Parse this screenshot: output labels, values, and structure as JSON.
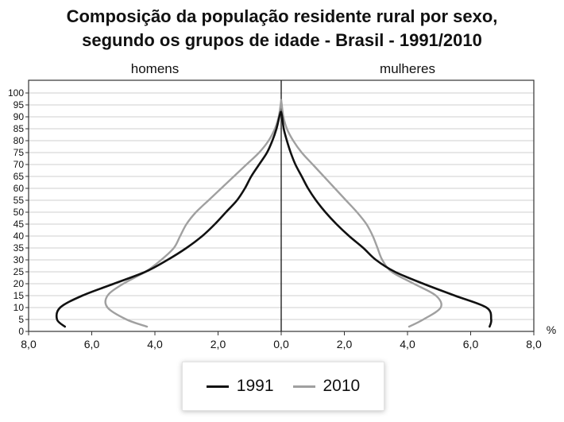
{
  "chart_data": {
    "type": "line",
    "title_lines": [
      "Composição da população residente rural por sexo,",
      "segundo os grupos de idade - Brasil - 1991/2010"
    ],
    "left_label": "homens",
    "right_label": "mulheres",
    "unit_label": "%",
    "x_ticks": [
      "8,0",
      "6,0",
      "4,0",
      "2,0",
      "0,0",
      "2,0",
      "4,0",
      "6,0",
      "8,0"
    ],
    "y_ticks": [
      "0",
      "5",
      "10",
      "15",
      "20",
      "25",
      "30",
      "35",
      "40",
      "45",
      "50",
      "55",
      "60",
      "65",
      "70",
      "75",
      "80",
      "85",
      "90",
      "95",
      "100"
    ],
    "xlim": [
      -8,
      8
    ],
    "ylim": [
      0,
      101
    ],
    "grid": true,
    "legend": "bottom-center",
    "series": [
      {
        "name": "1991",
        "color": "#111111",
        "men": [
          [
            6.85,
            2
          ],
          [
            7.1,
            5
          ],
          [
            7.0,
            10
          ],
          [
            6.3,
            15
          ],
          [
            5.3,
            20
          ],
          [
            4.3,
            25
          ],
          [
            3.6,
            30
          ],
          [
            3.0,
            35
          ],
          [
            2.5,
            40
          ],
          [
            2.1,
            45
          ],
          [
            1.75,
            50
          ],
          [
            1.4,
            55
          ],
          [
            1.15,
            60
          ],
          [
            0.95,
            65
          ],
          [
            0.7,
            70
          ],
          [
            0.45,
            75
          ],
          [
            0.28,
            80
          ],
          [
            0.15,
            85
          ],
          [
            0.06,
            90
          ],
          [
            0.02,
            92
          ]
        ],
        "women": [
          [
            6.6,
            2
          ],
          [
            6.65,
            5
          ],
          [
            6.5,
            10
          ],
          [
            5.5,
            15
          ],
          [
            4.5,
            20
          ],
          [
            3.6,
            25
          ],
          [
            3.0,
            30
          ],
          [
            2.6,
            35
          ],
          [
            2.15,
            40
          ],
          [
            1.75,
            45
          ],
          [
            1.4,
            50
          ],
          [
            1.1,
            55
          ],
          [
            0.85,
            60
          ],
          [
            0.65,
            65
          ],
          [
            0.45,
            70
          ],
          [
            0.3,
            75
          ],
          [
            0.18,
            80
          ],
          [
            0.08,
            85
          ],
          [
            0.03,
            90
          ],
          [
            0.0,
            92
          ]
        ]
      },
      {
        "name": "2010",
        "color": "#a0a0a0",
        "men": [
          [
            4.25,
            2
          ],
          [
            4.9,
            5
          ],
          [
            5.5,
            10
          ],
          [
            5.5,
            15
          ],
          [
            5.0,
            20
          ],
          [
            4.3,
            25
          ],
          [
            3.8,
            30
          ],
          [
            3.4,
            35
          ],
          [
            3.2,
            40
          ],
          [
            3.0,
            45
          ],
          [
            2.7,
            50
          ],
          [
            2.3,
            55
          ],
          [
            1.9,
            60
          ],
          [
            1.5,
            65
          ],
          [
            1.1,
            70
          ],
          [
            0.7,
            75
          ],
          [
            0.4,
            80
          ],
          [
            0.2,
            85
          ],
          [
            0.08,
            90
          ],
          [
            0.02,
            95
          ],
          [
            0.0,
            97
          ]
        ],
        "women": [
          [
            4.05,
            2
          ],
          [
            4.5,
            5
          ],
          [
            5.05,
            10
          ],
          [
            4.9,
            15
          ],
          [
            4.2,
            20
          ],
          [
            3.5,
            25
          ],
          [
            3.2,
            30
          ],
          [
            3.05,
            35
          ],
          [
            2.9,
            40
          ],
          [
            2.7,
            45
          ],
          [
            2.4,
            50
          ],
          [
            2.05,
            55
          ],
          [
            1.7,
            60
          ],
          [
            1.35,
            65
          ],
          [
            1.0,
            70
          ],
          [
            0.65,
            75
          ],
          [
            0.38,
            80
          ],
          [
            0.18,
            85
          ],
          [
            0.07,
            90
          ],
          [
            0.02,
            95
          ],
          [
            0.0,
            97
          ]
        ]
      }
    ]
  }
}
